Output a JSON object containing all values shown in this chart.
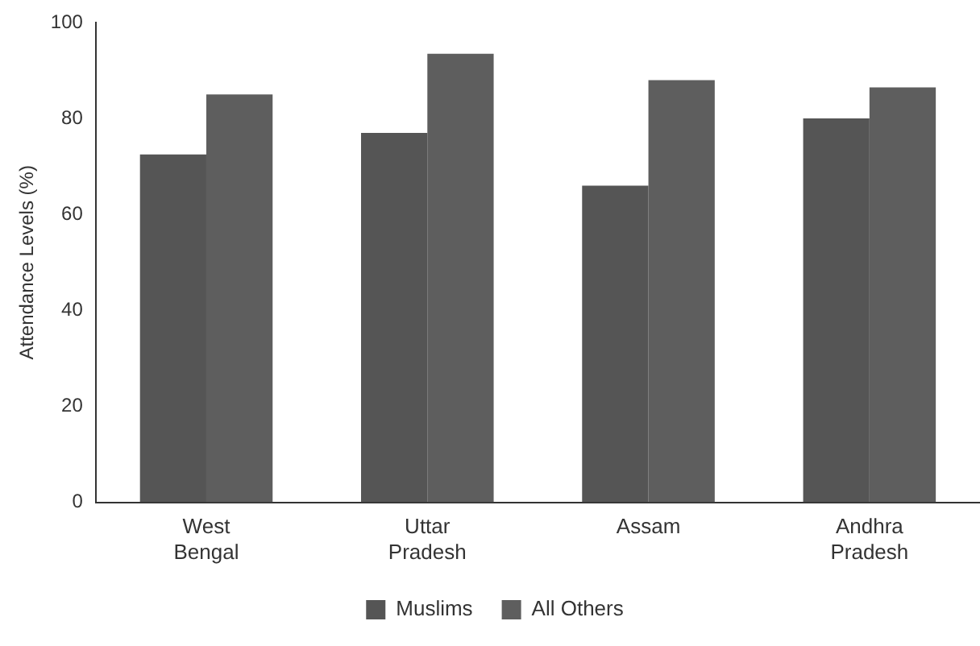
{
  "chart_data": {
    "type": "bar",
    "ylabel": "Attendance Levels (%)",
    "categories": [
      "West Bengal",
      "Uttar Pradesh",
      "Assam",
      "Andhra Pradesh"
    ],
    "series": [
      {
        "name": "Muslims",
        "color": "#555555",
        "values": [
          72.5,
          77,
          66,
          80
        ]
      },
      {
        "name": "All Others",
        "color": "#5e5e5e",
        "values": [
          85,
          93.5,
          88,
          86.5
        ]
      }
    ],
    "ylim": [
      0,
      100
    ],
    "yticks": [
      0,
      20,
      40,
      60,
      80,
      100
    ],
    "grid": false,
    "legend": "bottom"
  }
}
